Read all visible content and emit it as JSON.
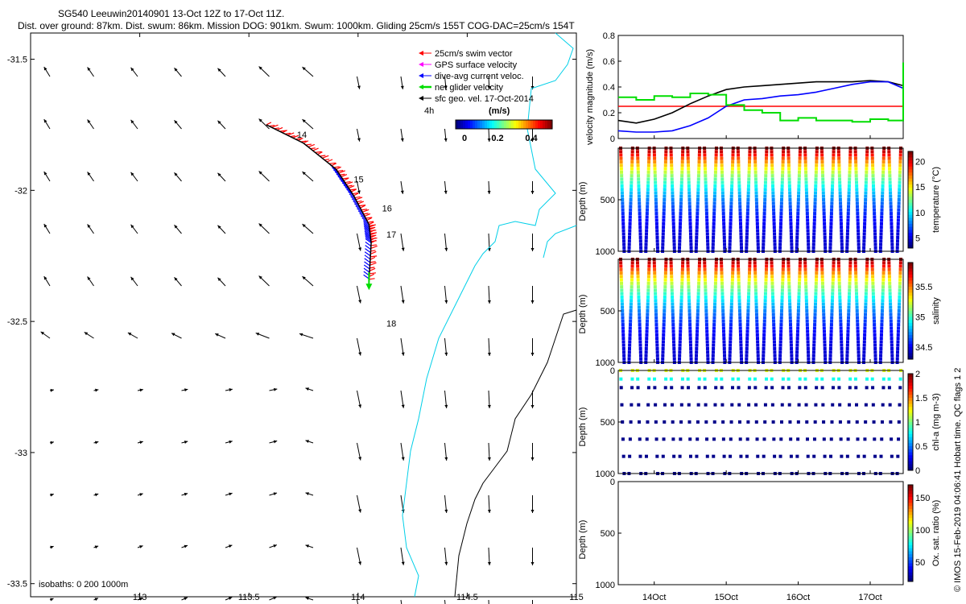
{
  "header": {
    "title": "SG540 Leeuwin20140901 13-Oct 12Z to 17-Oct 11Z.",
    "subtitle": "Dist. over ground: 87km. Dist. swum: 86km. Mission DOG: 901km. Swum: 1000km. Gliding 25cm/s 155T COG-DAC=25cm/s 154T"
  },
  "map": {
    "lon_ticks": [
      "113",
      "113.5",
      "114",
      "114.5",
      "115"
    ],
    "lat_ticks": [
      "-31.5",
      "-32",
      "-32.5",
      "-33",
      "-33.5"
    ],
    "isobath_label": "isobaths: 0   200  1000m",
    "day_labels": [
      "14",
      "15",
      "16",
      "17",
      "18"
    ],
    "legend": {
      "items": [
        {
          "label": "25cm/s swim vector",
          "color": "#ff0000"
        },
        {
          "label": "GPS surface velocity",
          "color": "#ff00ff"
        },
        {
          "label": "dive-avg current veloc.",
          "color": "#0000ff"
        },
        {
          "label": "net glider velocity",
          "color": "#00dd00"
        },
        {
          "label": "sfc geo. vel. 17-Oct-2014",
          "color": "#000000"
        }
      ],
      "time_step": "4h",
      "colorbar_title": "(m/s)",
      "colorbar_ticks": [
        "0",
        "0.2",
        "0.4"
      ]
    }
  },
  "timeseries": {
    "x_ticks": [
      "14Oct",
      "15Oct",
      "16Oct",
      "17Oct"
    ],
    "velocity": {
      "ylabel": "velocity magnitude (m/s)",
      "y_ticks": [
        "0",
        "0.2",
        "0.4",
        "0.6",
        "0.8"
      ]
    },
    "panels": [
      {
        "ylabel": "Depth (m)",
        "cbar_label": "temperature (°C)",
        "cbar_ticks": [
          "5",
          "10",
          "15",
          "20"
        ],
        "depth_ticks": [
          "500",
          "1000"
        ]
      },
      {
        "ylabel": "Depth (m)",
        "cbar_label": "salinity",
        "cbar_ticks": [
          "34.5",
          "35",
          "35.5"
        ],
        "depth_ticks": [
          "500",
          "1000"
        ]
      },
      {
        "ylabel": "Depth (m)",
        "cbar_label": "chl-a (mg m-3)",
        "cbar_ticks": [
          "0",
          "0.5",
          "1",
          "1.5",
          "2"
        ],
        "depth_ticks": [
          "0",
          "500",
          "1000"
        ]
      },
      {
        "ylabel": "Depth (m)",
        "cbar_label": "Ox. sat. ratio (%)",
        "cbar_ticks": [
          "50",
          "100",
          "150"
        ],
        "depth_ticks": [
          "0",
          "500",
          "1000"
        ]
      }
    ]
  },
  "footer": {
    "credit": "© IMOS 15-Feb-2019 04:06:41 Hobart time. QC flags 1  2"
  },
  "chart_data": [
    {
      "type": "scatter",
      "description_kind": "map",
      "xlim": [
        112.5,
        115
      ],
      "ylim": [
        -33.55,
        -31.4
      ],
      "grid": false,
      "track_points": [
        {
          "lon": 113.58,
          "lat": -31.75
        },
        {
          "lon": 113.75,
          "lat": -31.82
        },
        {
          "lon": 113.9,
          "lat": -31.92
        },
        {
          "lon": 113.98,
          "lat": -32.02
        },
        {
          "lon": 114.05,
          "lat": -32.13
        },
        {
          "lon": 114.06,
          "lat": -32.2
        },
        {
          "lon": 114.05,
          "lat": -32.35
        }
      ],
      "day_marks": [
        {
          "label": "14",
          "lon": 113.72,
          "lat": -31.8
        },
        {
          "label": "15",
          "lon": 113.98,
          "lat": -31.97
        },
        {
          "label": "16",
          "lon": 114.11,
          "lat": -32.08
        },
        {
          "label": "17",
          "lon": 114.13,
          "lat": -32.18
        },
        {
          "label": "18",
          "lon": 114.13,
          "lat": -32.52
        }
      ]
    },
    {
      "type": "line",
      "x_dates": [
        "2014-10-13T12:00",
        "2014-10-13T18:00",
        "2014-10-14T00:00",
        "2014-10-14T06:00",
        "2014-10-14T12:00",
        "2014-10-14T18:00",
        "2014-10-15T00:00",
        "2014-10-15T06:00",
        "2014-10-15T12:00",
        "2014-10-15T18:00",
        "2014-10-16T00:00",
        "2014-10-16T06:00",
        "2014-10-16T12:00",
        "2014-10-16T18:00",
        "2014-10-17T00:00",
        "2014-10-17T06:00",
        "2014-10-17T11:00"
      ],
      "xlim": [
        "2014-10-13T12:00",
        "2014-10-17T11:00"
      ],
      "ylim": [
        0,
        0.8
      ],
      "ylabel": "velocity magnitude (m/s)",
      "series": [
        {
          "name": "25cm/s swim vector",
          "color": "#ff0000",
          "values": [
            0.25,
            0.25,
            0.25,
            0.25,
            0.25,
            0.25,
            0.25,
            0.25,
            0.25,
            0.25,
            0.25,
            0.25,
            0.25,
            0.25,
            0.25,
            0.25,
            0.25
          ]
        },
        {
          "name": "sfc geo. vel. 17-Oct-2014",
          "color": "#000000",
          "values": [
            0.14,
            0.12,
            0.15,
            0.2,
            0.27,
            0.33,
            0.38,
            0.4,
            0.41,
            0.42,
            0.43,
            0.44,
            0.44,
            0.44,
            0.45,
            0.44,
            0.41
          ]
        },
        {
          "name": "dive-avg current veloc.",
          "color": "#0000ff",
          "values": [
            0.06,
            0.05,
            0.05,
            0.06,
            0.1,
            0.16,
            0.25,
            0.3,
            0.31,
            0.33,
            0.34,
            0.36,
            0.39,
            0.42,
            0.44,
            0.44,
            0.39
          ]
        },
        {
          "name": "net glider velocity",
          "color": "#00dd00",
          "values": [
            0.32,
            0.3,
            0.33,
            0.32,
            0.35,
            0.34,
            0.26,
            0.22,
            0.2,
            0.14,
            0.16,
            0.14,
            0.14,
            0.13,
            0.15,
            0.14,
            0.59
          ]
        }
      ]
    },
    {
      "type": "scatter",
      "ylabel": "Depth (m)",
      "ylim": [
        1000,
        0
      ],
      "variable": "temperature (°C)",
      "color_range": [
        3,
        22
      ],
      "profile_count": 34,
      "max_depth": 1000
    },
    {
      "type": "scatter",
      "ylabel": "Depth (m)",
      "ylim": [
        1000,
        0
      ],
      "variable": "salinity",
      "color_range": [
        34.3,
        35.9
      ],
      "profile_count": 34,
      "max_depth": 1000
    },
    {
      "type": "scatter",
      "ylabel": "Depth (m)",
      "ylim": [
        1000,
        0
      ],
      "variable": "chl-a (mg m-3)",
      "color_range": [
        0,
        2
      ],
      "profile_count": 34,
      "max_depth": 1000
    },
    {
      "type": "scatter",
      "ylabel": "Depth (m)",
      "ylim": [
        1000,
        0
      ],
      "variable": "Ox. sat. ratio (%)",
      "color_range": [
        20,
        170
      ],
      "profile_count": 0,
      "max_depth": 1000
    }
  ]
}
